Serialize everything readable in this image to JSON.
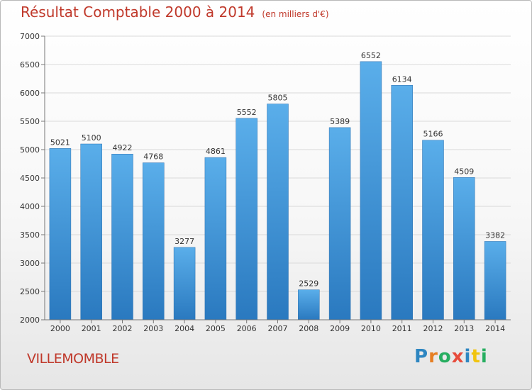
{
  "chart_data": {
    "type": "bar",
    "title": "Résultat Comptable 2000 à 2014",
    "subtitle": "(en milliers d'€)",
    "categories": [
      "2000",
      "2001",
      "2002",
      "2003",
      "2004",
      "2005",
      "2006",
      "2007",
      "2008",
      "2009",
      "2010",
      "2011",
      "2012",
      "2013",
      "2014"
    ],
    "values": [
      5021,
      5100,
      4922,
      4768,
      3277,
      4861,
      5552,
      5805,
      2529,
      5389,
      6552,
      6134,
      5166,
      4509,
      3382
    ],
    "ylim": [
      2000,
      7000
    ],
    "yticks": [
      2000,
      2500,
      3000,
      3500,
      4000,
      4500,
      5000,
      5500,
      6000,
      6500,
      7000
    ],
    "grid": true,
    "bar_color": "#3b8fd6",
    "title_color": "#c0392b"
  },
  "location": "VILLEMOMBLE",
  "logo": {
    "letters": [
      "P",
      "r",
      "o",
      "x",
      "i",
      "t",
      "i"
    ],
    "colors": [
      "#2e86c1",
      "#e67e22",
      "#27ae60",
      "#e74c3c",
      "#2e86c1",
      "#f1c40f",
      "#27ae60"
    ]
  }
}
